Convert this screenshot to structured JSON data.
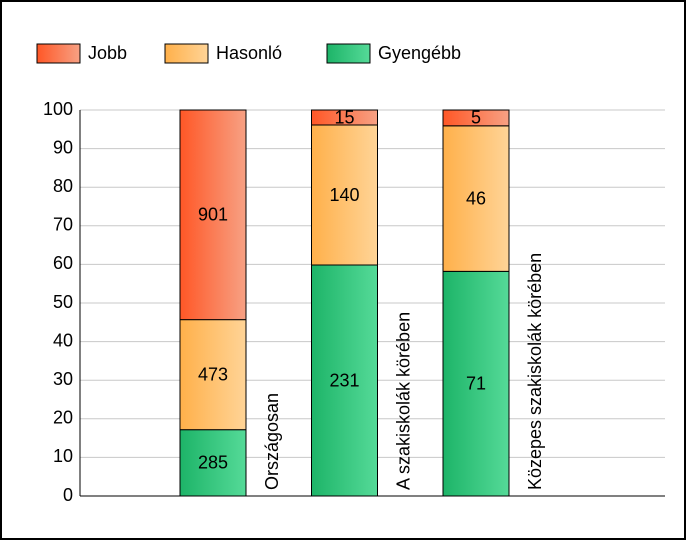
{
  "chart_data": {
    "type": "bar",
    "stacking": "percent",
    "categories": [
      "Országosan",
      "A szakiskolák körében",
      "Közepes szakiskolák körében"
    ],
    "series": [
      {
        "name": "Gyengébb",
        "color": [
          "#1db468",
          "#55da98"
        ],
        "values": [
          285,
          231,
          71
        ]
      },
      {
        "name": "Hasonló",
        "color": [
          "#ffb04a",
          "#ffd497"
        ],
        "values": [
          473,
          140,
          46
        ]
      },
      {
        "name": "Jobb",
        "color": [
          "#ff5726",
          "#f7a184"
        ],
        "values": [
          901,
          15,
          5
        ]
      }
    ],
    "legend_order": [
      2,
      1,
      0
    ],
    "ylim": [
      0,
      100
    ],
    "yticks": [
      0,
      10,
      20,
      30,
      40,
      50,
      60,
      70,
      80,
      90,
      100
    ],
    "grid": true
  }
}
